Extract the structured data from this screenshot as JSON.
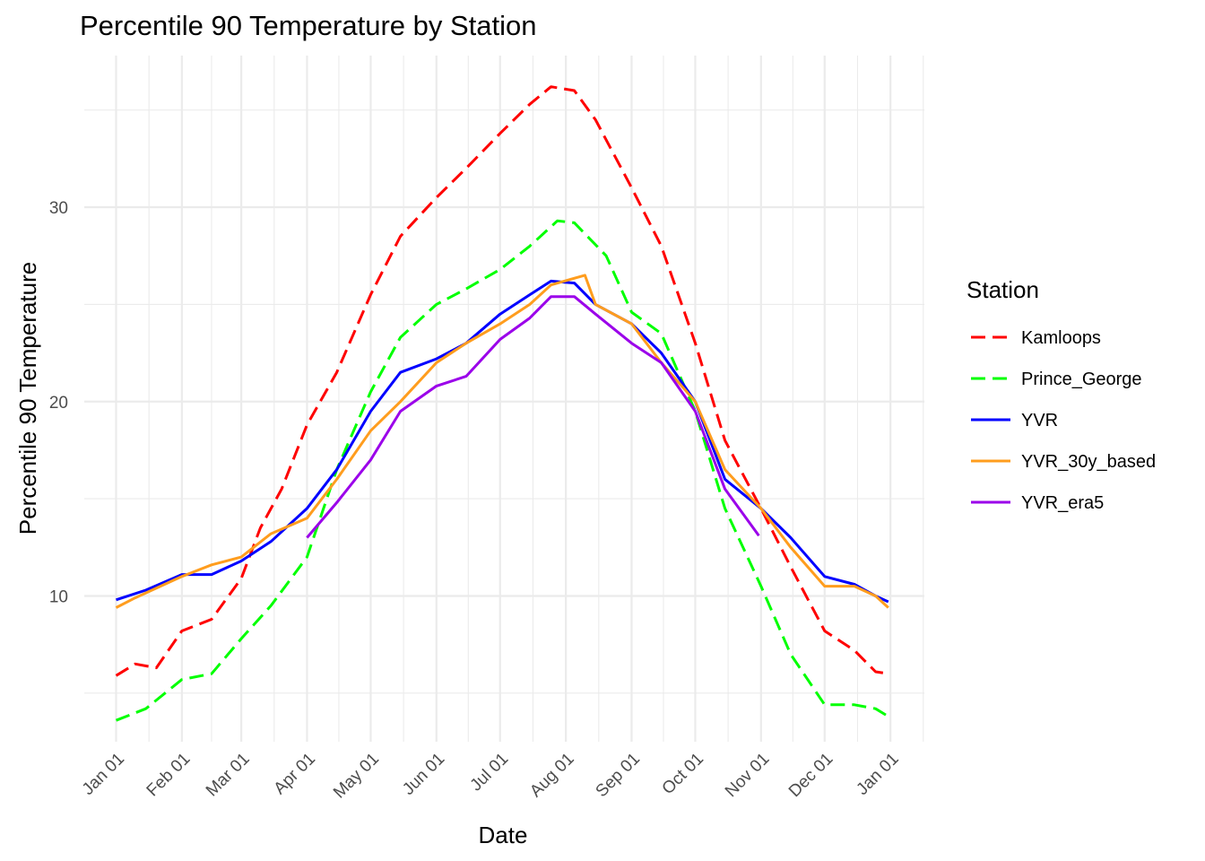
{
  "chart_data": {
    "type": "line",
    "title": "Percentile 90 Temperature by Station",
    "xlabel": "Date",
    "ylabel": "Percentile 90 Temperature",
    "xlim": [
      "2000-12-17",
      "2002-01-17"
    ],
    "ylim": [
      2.5,
      37.8
    ],
    "y_ticks": [
      10,
      20,
      30
    ],
    "x_ticks": [
      {
        "date": "2001-01-01",
        "label": "Jan 01"
      },
      {
        "date": "2001-02-01",
        "label": "Feb 01"
      },
      {
        "date": "2001-03-01",
        "label": "Mar 01"
      },
      {
        "date": "2001-04-01",
        "label": "Apr 01"
      },
      {
        "date": "2001-05-01",
        "label": "May 01"
      },
      {
        "date": "2001-06-01",
        "label": "Jun 01"
      },
      {
        "date": "2001-07-01",
        "label": "Jul 01"
      },
      {
        "date": "2001-08-01",
        "label": "Aug 01"
      },
      {
        "date": "2001-09-01",
        "label": "Sep 01"
      },
      {
        "date": "2001-10-01",
        "label": "Oct 01"
      },
      {
        "date": "2001-11-01",
        "label": "Nov 01"
      },
      {
        "date": "2001-12-01",
        "label": "Dec 01"
      },
      {
        "date": "2002-01-01",
        "label": "Jan 01"
      }
    ],
    "grid": true,
    "legend": {
      "title": "Station",
      "position": "right"
    },
    "series": [
      {
        "name": "Kamloops",
        "color": "#ff0000",
        "dash": "dashed",
        "points": [
          [
            "2001-01-01",
            5.9
          ],
          [
            "2001-01-10",
            6.5
          ],
          [
            "2001-01-20",
            6.3
          ],
          [
            "2001-02-01",
            8.2
          ],
          [
            "2001-02-15",
            8.8
          ],
          [
            "2001-03-01",
            10.9
          ],
          [
            "2001-03-10",
            13.5
          ],
          [
            "2001-03-20",
            15.5
          ],
          [
            "2001-04-01",
            18.8
          ],
          [
            "2001-04-15",
            21.5
          ],
          [
            "2001-05-01",
            25.5
          ],
          [
            "2001-05-15",
            28.5
          ],
          [
            "2001-06-01",
            30.5
          ],
          [
            "2001-06-15",
            32.0
          ],
          [
            "2001-07-01",
            33.8
          ],
          [
            "2001-07-15",
            35.3
          ],
          [
            "2001-07-25",
            36.2
          ],
          [
            "2001-08-05",
            36.0
          ],
          [
            "2001-08-15",
            34.5
          ],
          [
            "2001-09-01",
            31.0
          ],
          [
            "2001-09-15",
            28.0
          ],
          [
            "2001-10-01",
            23.0
          ],
          [
            "2001-10-15",
            18.0
          ],
          [
            "2001-11-01",
            14.5
          ],
          [
            "2001-11-15",
            11.5
          ],
          [
            "2001-12-01",
            8.2
          ],
          [
            "2001-12-15",
            7.2
          ],
          [
            "2001-12-25",
            6.1
          ],
          [
            "2001-12-31",
            6.0
          ]
        ]
      },
      {
        "name": "Prince_George",
        "color": "#00ff00",
        "dash": "dashed",
        "points": [
          [
            "2001-01-01",
            3.6
          ],
          [
            "2001-01-15",
            4.2
          ],
          [
            "2001-02-01",
            5.7
          ],
          [
            "2001-02-15",
            6.0
          ],
          [
            "2001-03-01",
            7.8
          ],
          [
            "2001-03-15",
            9.5
          ],
          [
            "2001-04-01",
            12.0
          ],
          [
            "2001-04-15",
            16.5
          ],
          [
            "2001-05-01",
            20.5
          ],
          [
            "2001-05-15",
            23.3
          ],
          [
            "2001-06-01",
            25.0
          ],
          [
            "2001-06-15",
            25.8
          ],
          [
            "2001-07-01",
            26.8
          ],
          [
            "2001-07-15",
            28.0
          ],
          [
            "2001-07-28",
            29.3
          ],
          [
            "2001-08-05",
            29.2
          ],
          [
            "2001-08-20",
            27.5
          ],
          [
            "2001-09-01",
            24.6
          ],
          [
            "2001-09-15",
            23.5
          ],
          [
            "2001-10-01",
            19.5
          ],
          [
            "2001-10-15",
            14.5
          ],
          [
            "2001-11-01",
            10.5
          ],
          [
            "2001-11-15",
            7.0
          ],
          [
            "2001-12-01",
            4.4
          ],
          [
            "2001-12-15",
            4.4
          ],
          [
            "2001-12-25",
            4.2
          ],
          [
            "2001-12-31",
            3.8
          ]
        ]
      },
      {
        "name": "YVR",
        "color": "#0000ff",
        "dash": "solid",
        "points": [
          [
            "2001-01-01",
            9.8
          ],
          [
            "2001-01-15",
            10.3
          ],
          [
            "2001-02-01",
            11.1
          ],
          [
            "2001-02-15",
            11.1
          ],
          [
            "2001-03-01",
            11.8
          ],
          [
            "2001-03-15",
            12.8
          ],
          [
            "2001-04-01",
            14.5
          ],
          [
            "2001-04-15",
            16.5
          ],
          [
            "2001-05-01",
            19.5
          ],
          [
            "2001-05-15",
            21.5
          ],
          [
            "2001-06-01",
            22.2
          ],
          [
            "2001-06-15",
            23.0
          ],
          [
            "2001-07-01",
            24.5
          ],
          [
            "2001-07-15",
            25.5
          ],
          [
            "2001-07-25",
            26.2
          ],
          [
            "2001-08-05",
            26.1
          ],
          [
            "2001-08-15",
            25.0
          ],
          [
            "2001-09-01",
            24.0
          ],
          [
            "2001-09-15",
            22.5
          ],
          [
            "2001-10-01",
            20.0
          ],
          [
            "2001-10-15",
            16.0
          ],
          [
            "2001-11-01",
            14.5
          ],
          [
            "2001-11-15",
            13.0
          ],
          [
            "2001-12-01",
            11.0
          ],
          [
            "2001-12-15",
            10.6
          ],
          [
            "2001-12-25",
            10.0
          ],
          [
            "2001-12-31",
            9.7
          ]
        ]
      },
      {
        "name": "YVR_30y_based",
        "color": "#ff9d1e",
        "dash": "solid",
        "points": [
          [
            "2001-01-01",
            9.4
          ],
          [
            "2001-01-10",
            9.9
          ],
          [
            "2001-01-20",
            10.4
          ],
          [
            "2001-02-01",
            11.0
          ],
          [
            "2001-02-15",
            11.6
          ],
          [
            "2001-03-01",
            12.0
          ],
          [
            "2001-03-15",
            13.2
          ],
          [
            "2001-04-01",
            14.0
          ],
          [
            "2001-04-15",
            16.0
          ],
          [
            "2001-05-01",
            18.5
          ],
          [
            "2001-05-15",
            20.0
          ],
          [
            "2001-06-01",
            22.0
          ],
          [
            "2001-06-15",
            23.0
          ],
          [
            "2001-07-01",
            24.0
          ],
          [
            "2001-07-15",
            25.0
          ],
          [
            "2001-07-25",
            26.0
          ],
          [
            "2001-08-10",
            26.5
          ],
          [
            "2001-08-15",
            25.0
          ],
          [
            "2001-09-01",
            24.0
          ],
          [
            "2001-09-15",
            22.0
          ],
          [
            "2001-10-01",
            20.0
          ],
          [
            "2001-10-15",
            16.5
          ],
          [
            "2001-11-01",
            14.5
          ],
          [
            "2001-11-15",
            12.5
          ],
          [
            "2001-12-01",
            10.5
          ],
          [
            "2001-12-15",
            10.5
          ],
          [
            "2001-12-25",
            10.0
          ],
          [
            "2001-12-31",
            9.4
          ]
        ]
      },
      {
        "name": "YVR_era5",
        "color": "#9b00ea",
        "dash": "solid",
        "points": [
          [
            "2001-04-01",
            13.0
          ],
          [
            "2001-04-15",
            14.8
          ],
          [
            "2001-05-01",
            17.0
          ],
          [
            "2001-05-15",
            19.5
          ],
          [
            "2001-06-01",
            20.8
          ],
          [
            "2001-06-15",
            21.3
          ],
          [
            "2001-07-01",
            23.2
          ],
          [
            "2001-07-15",
            24.3
          ],
          [
            "2001-07-25",
            25.4
          ],
          [
            "2001-08-05",
            25.4
          ],
          [
            "2001-08-15",
            24.5
          ],
          [
            "2001-09-01",
            23.0
          ],
          [
            "2001-09-15",
            22.0
          ],
          [
            "2001-10-01",
            19.5
          ],
          [
            "2001-10-15",
            15.5
          ],
          [
            "2001-10-31",
            13.1
          ]
        ]
      }
    ]
  }
}
